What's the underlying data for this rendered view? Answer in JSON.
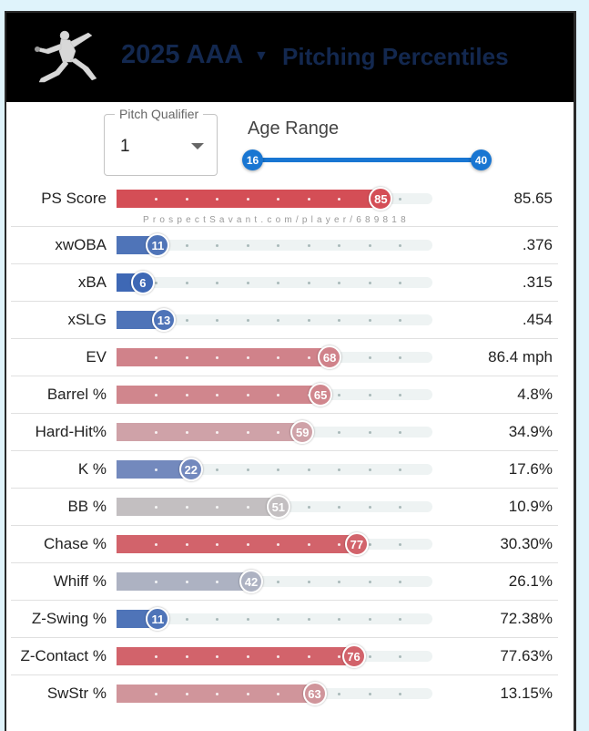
{
  "header": {
    "season": "2025 AAA",
    "page_title": "Pitching Percentiles"
  },
  "filters": {
    "qualifier_label": "Pitch Qualifier",
    "qualifier_value": "1",
    "age_label": "Age Range",
    "age_min": "16",
    "age_max": "40"
  },
  "watermark": "ProspectSavant.com/player/689818",
  "metrics": [
    {
      "label": "PS Score",
      "percentile": 85,
      "value": "85.65",
      "color": "#d44e56"
    },
    {
      "label": "xwOBA",
      "percentile": 11,
      "value": ".376",
      "color": "#4f74b8"
    },
    {
      "label": "xBA",
      "percentile": 6,
      "value": ".315",
      "color": "#3e68b5"
    },
    {
      "label": "xSLG",
      "percentile": 13,
      "value": ".454",
      "color": "#4f74b8"
    },
    {
      "label": "EV",
      "percentile": 68,
      "value": "86.4 mph",
      "color": "#d0828a"
    },
    {
      "label": "Barrel %",
      "percentile": 65,
      "value": "4.8%",
      "color": "#d0868d"
    },
    {
      "label": "Hard-Hit%",
      "percentile": 59,
      "value": "34.9%",
      "color": "#cfa2a8"
    },
    {
      "label": "K %",
      "percentile": 22,
      "value": "17.6%",
      "color": "#7389bd"
    },
    {
      "label": "BB %",
      "percentile": 51,
      "value": "10.9%",
      "color": "#c3bfc1"
    },
    {
      "label": "Chase %",
      "percentile": 77,
      "value": "30.30%",
      "color": "#d2636b"
    },
    {
      "label": "Whiff %",
      "percentile": 42,
      "value": "26.1%",
      "color": "#adb2c2"
    },
    {
      "label": "Z-Swing %",
      "percentile": 11,
      "value": "72.38%",
      "color": "#4f74b8"
    },
    {
      "label": "Z-Contact %",
      "percentile": 76,
      "value": "77.63%",
      "color": "#d2636b"
    },
    {
      "label": "SwStr %",
      "percentile": 63,
      "value": "13.15%",
      "color": "#d0959b"
    }
  ]
}
